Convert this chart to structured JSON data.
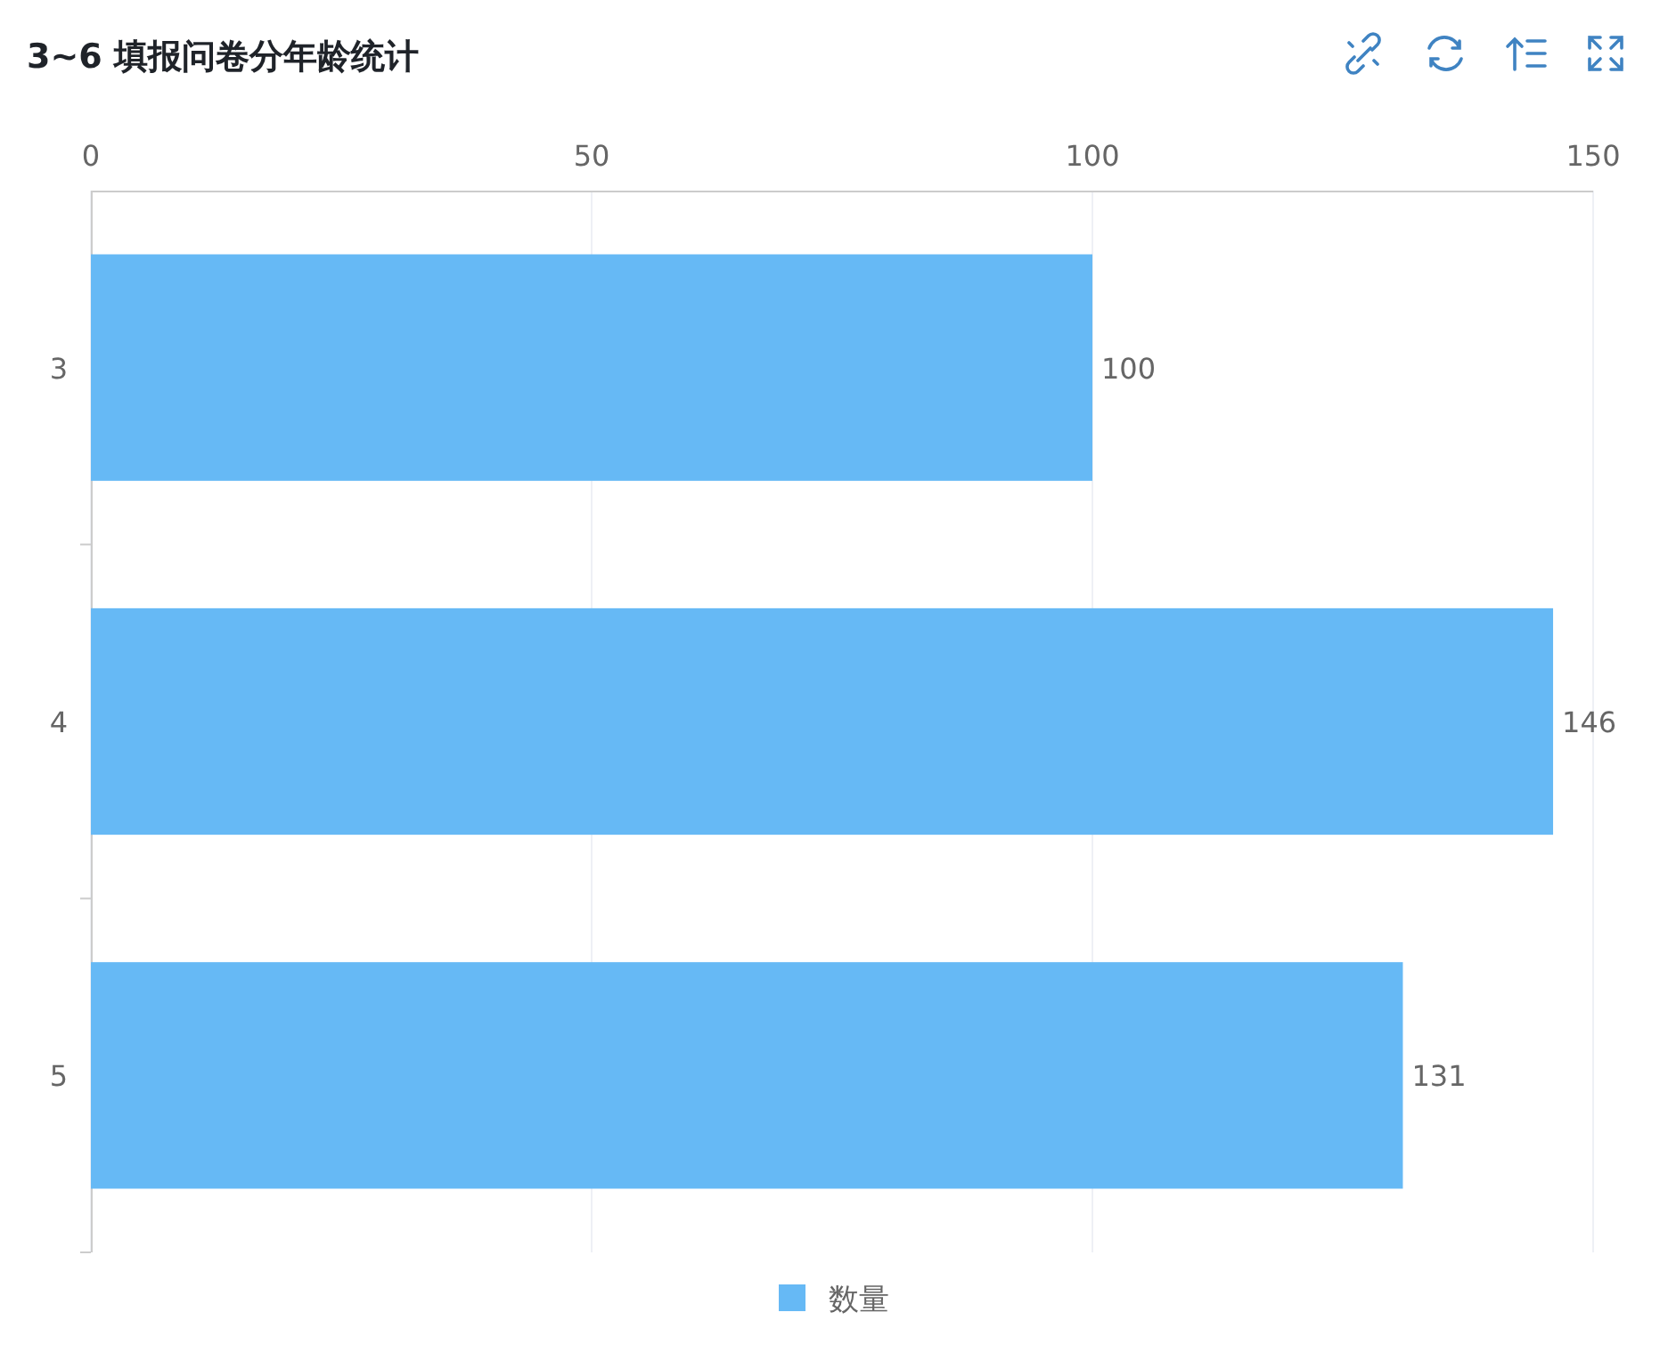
{
  "chart_data": {
    "type": "bar",
    "orientation": "horizontal",
    "title": "3~6 填报问卷分年龄统计",
    "categories": [
      "3",
      "4",
      "5"
    ],
    "series": [
      {
        "name": "数量",
        "color": "#66b9f5",
        "values": [
          100,
          146,
          131
        ]
      }
    ],
    "xlim": [
      0,
      150
    ],
    "xticks": [
      0,
      50,
      100,
      150
    ],
    "grid": "x",
    "legend": "bottom",
    "data_labels": true
  }
}
